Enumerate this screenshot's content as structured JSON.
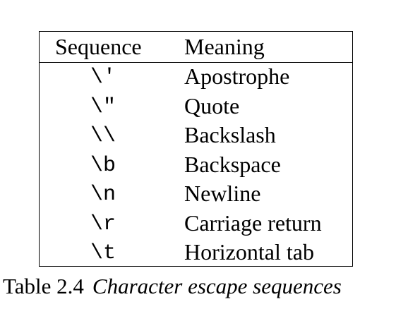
{
  "table": {
    "headers": {
      "sequence": "Sequence",
      "meaning": "Meaning"
    },
    "rows": [
      {
        "sequence": "\\'",
        "meaning": "Apostrophe"
      },
      {
        "sequence": "\\\"",
        "meaning": "Quote"
      },
      {
        "sequence": "\\\\",
        "meaning": "Backslash"
      },
      {
        "sequence": "\\b",
        "meaning": "Backspace"
      },
      {
        "sequence": "\\n",
        "meaning": "Newline"
      },
      {
        "sequence": "\\r",
        "meaning": "Carriage return"
      },
      {
        "sequence": "\\t",
        "meaning": "Horizontal tab"
      }
    ]
  },
  "caption": {
    "label": "Table 2.4",
    "text": "Character escape sequences"
  }
}
